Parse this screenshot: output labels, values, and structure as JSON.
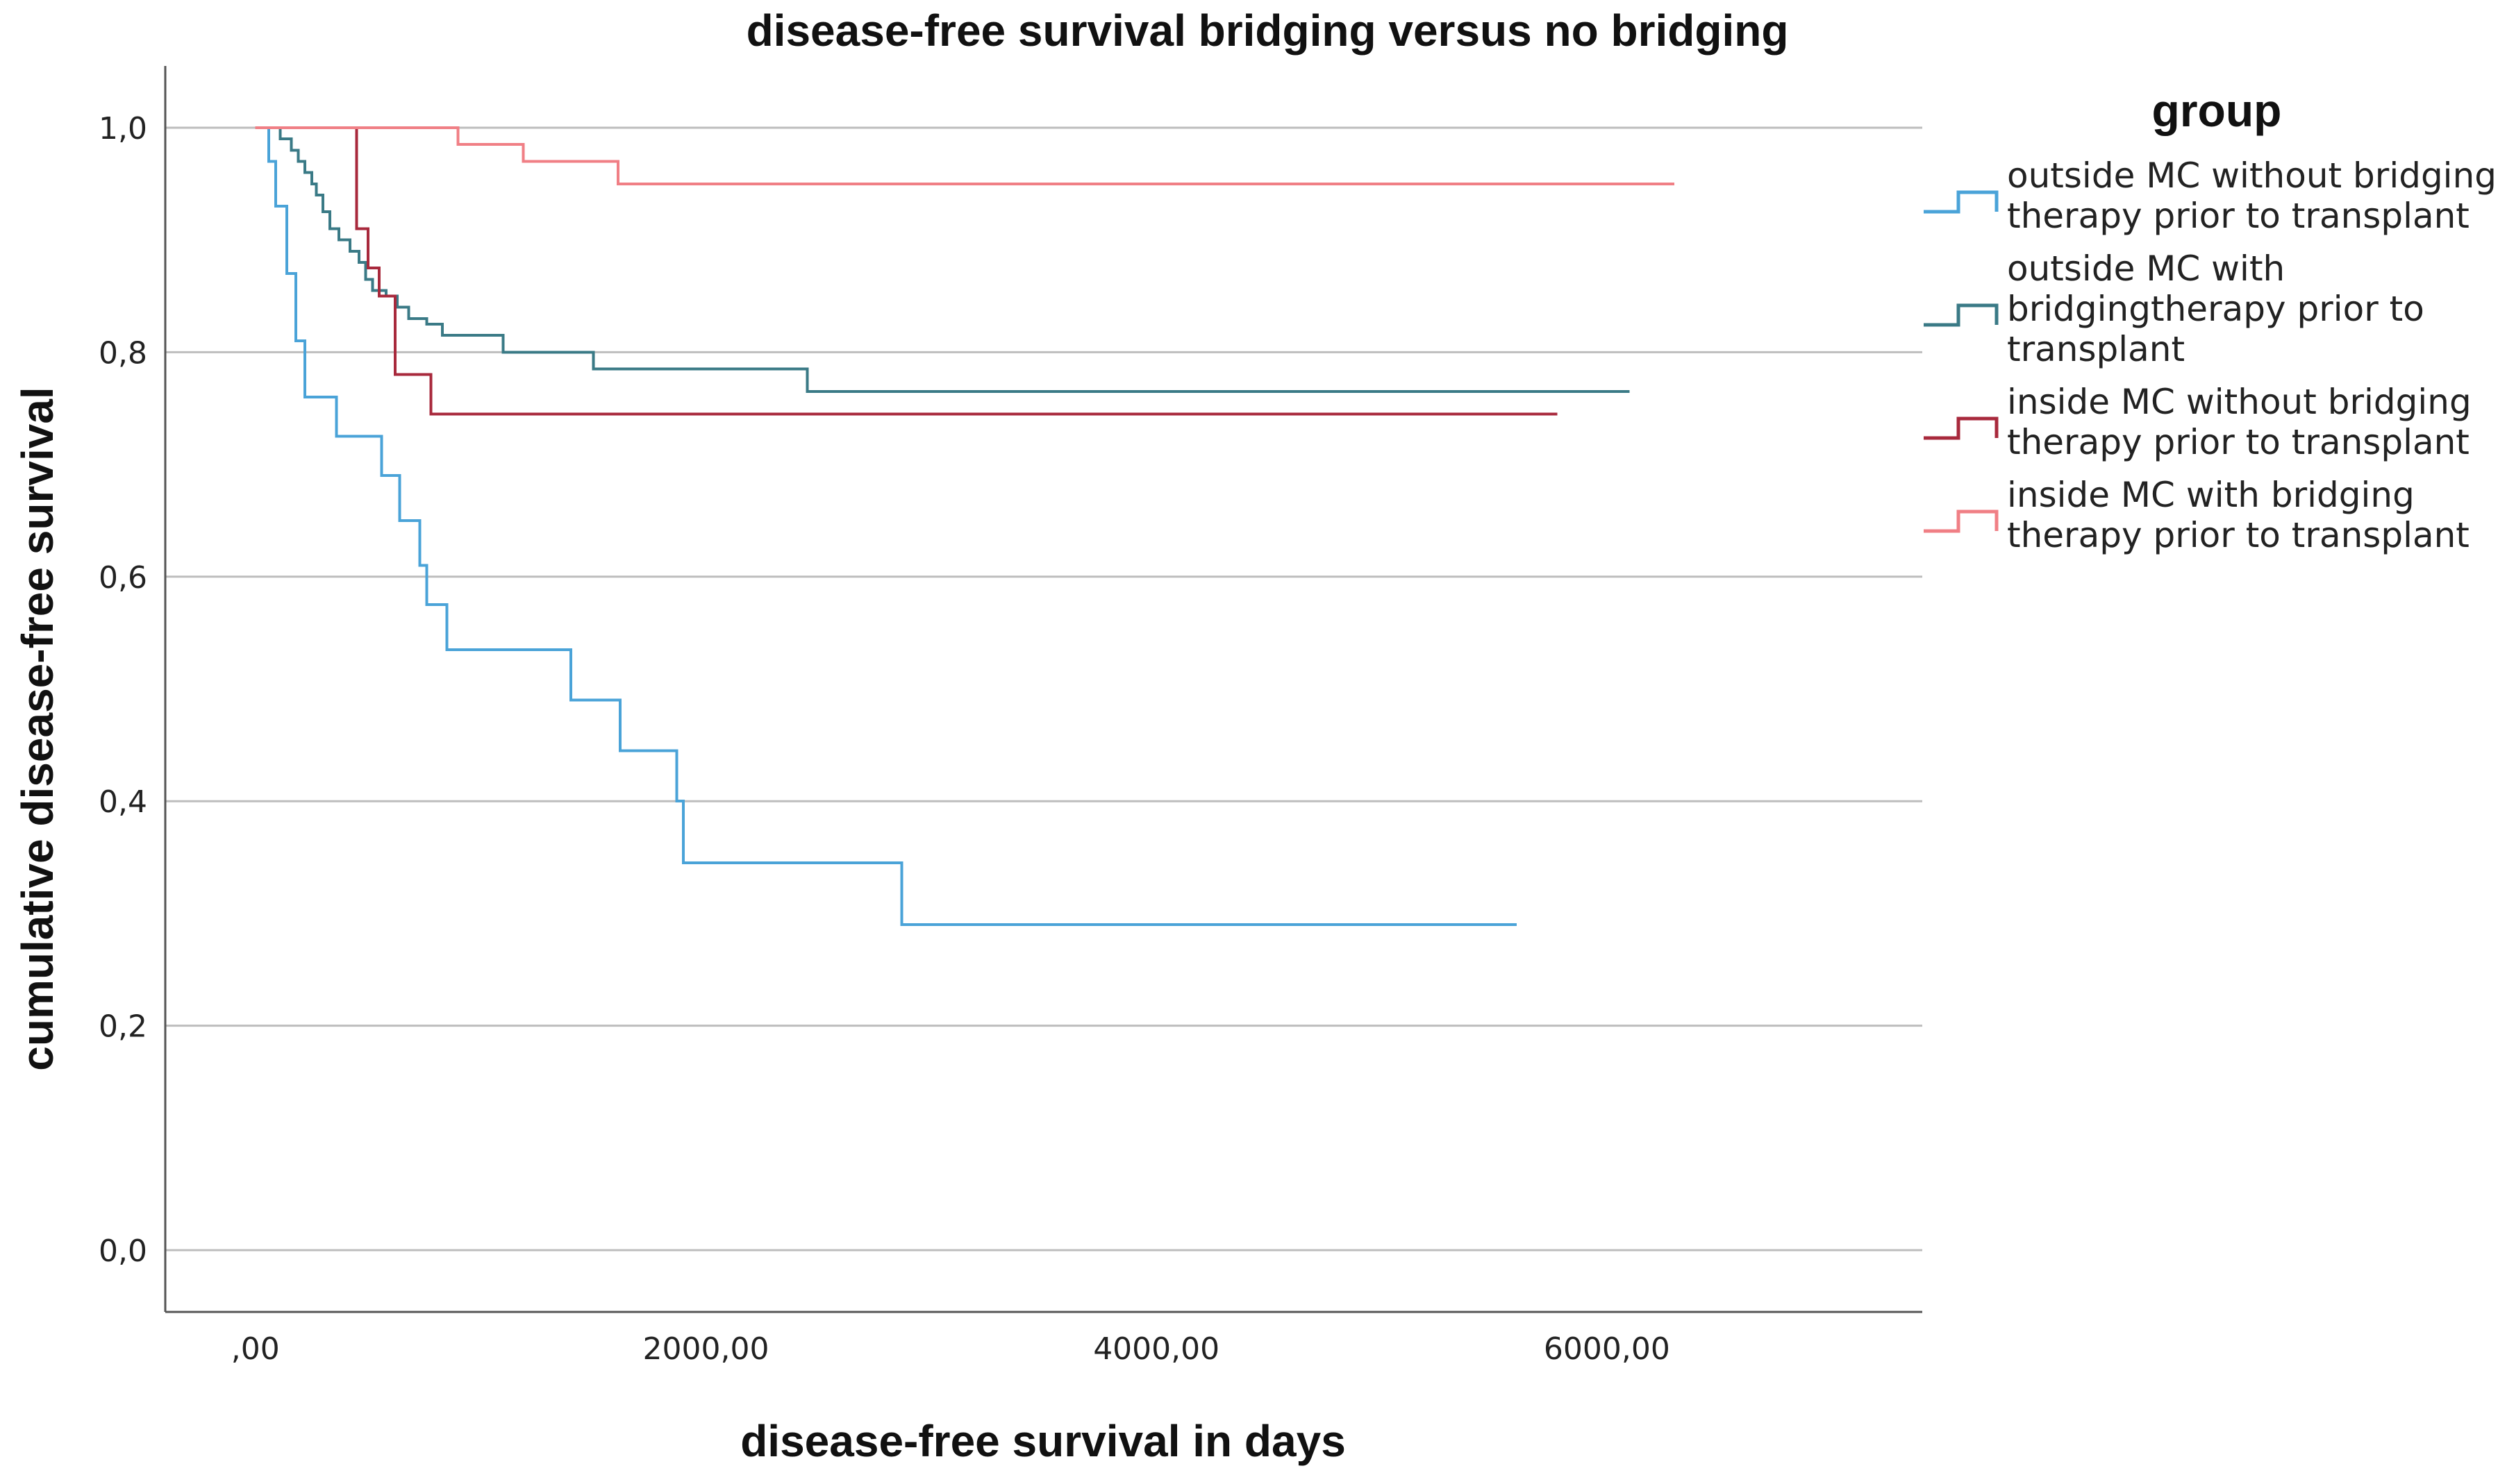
{
  "chart_data": {
    "type": "line",
    "title": "disease-free survival bridging versus no bridging",
    "xlabel": "disease-free survival in days",
    "ylabel": "cumulative disease-free survival",
    "xlim": [
      -400,
      7400
    ],
    "ylim": [
      -0.055,
      1.055
    ],
    "x_ticks": [
      0,
      2000,
      4000,
      6000
    ],
    "x_tick_labels": [
      ",00",
      "2000,00",
      "4000,00",
      "6000,00"
    ],
    "y_ticks": [
      0,
      0.2,
      0.4,
      0.6,
      0.8,
      1.0
    ],
    "y_tick_labels": [
      "0,0",
      "0,2",
      "0,4",
      "0,6",
      "0,8",
      "1,0"
    ],
    "grid": "horizontal",
    "legend_title": "group",
    "legend_position": "right",
    "series": [
      {
        "name": "outside MC without bridging therapy prior to transplant",
        "legend_lines": [
          "outside MC without bridging",
          "therapy prior to transplant"
        ],
        "color": "#4aa3d8",
        "steps": [
          [
            0,
            1.0
          ],
          [
            60,
            0.97
          ],
          [
            90,
            0.93
          ],
          [
            140,
            0.87
          ],
          [
            180,
            0.81
          ],
          [
            220,
            0.76
          ],
          [
            360,
            0.725
          ],
          [
            560,
            0.69
          ],
          [
            640,
            0.65
          ],
          [
            730,
            0.61
          ],
          [
            760,
            0.575
          ],
          [
            850,
            0.535
          ],
          [
            1400,
            0.49
          ],
          [
            1620,
            0.445
          ],
          [
            1870,
            0.4
          ],
          [
            1900,
            0.345
          ],
          [
            2870,
            0.29
          ],
          [
            5600,
            0.29
          ]
        ]
      },
      {
        "name": "outside MC with bridgingtherapy prior to transplant",
        "legend_lines": [
          "outside MC with",
          "bridgingtherapy prior to",
          "transplant"
        ],
        "color": "#3a7a86",
        "steps": [
          [
            0,
            1.0
          ],
          [
            110,
            0.99
          ],
          [
            160,
            0.98
          ],
          [
            190,
            0.97
          ],
          [
            220,
            0.96
          ],
          [
            250,
            0.95
          ],
          [
            270,
            0.94
          ],
          [
            300,
            0.925
          ],
          [
            330,
            0.91
          ],
          [
            370,
            0.9
          ],
          [
            420,
            0.89
          ],
          [
            460,
            0.88
          ],
          [
            490,
            0.865
          ],
          [
            520,
            0.855
          ],
          [
            580,
            0.85
          ],
          [
            630,
            0.84
          ],
          [
            680,
            0.83
          ],
          [
            760,
            0.825
          ],
          [
            830,
            0.815
          ],
          [
            1100,
            0.8
          ],
          [
            1500,
            0.785
          ],
          [
            2450,
            0.765
          ],
          [
            6100,
            0.765
          ]
        ]
      },
      {
        "name": "inside MC without bridging therapy prior to transplant",
        "legend_lines": [
          "inside MC without bridging",
          "therapy prior to transplant"
        ],
        "color": "#a8293c",
        "steps": [
          [
            0,
            1.0
          ],
          [
            450,
            0.91
          ],
          [
            500,
            0.875
          ],
          [
            550,
            0.85
          ],
          [
            620,
            0.78
          ],
          [
            780,
            0.745
          ],
          [
            5780,
            0.745
          ]
        ]
      },
      {
        "name": "inside MC with bridging therapy prior to transplant",
        "legend_lines": [
          "inside MC with bridging",
          "therapy prior to transplant"
        ],
        "color": "#f07f85",
        "steps": [
          [
            0,
            1.0
          ],
          [
            900,
            0.985
          ],
          [
            1190,
            0.97
          ],
          [
            1610,
            0.95
          ],
          [
            6300,
            0.95
          ]
        ]
      }
    ]
  }
}
